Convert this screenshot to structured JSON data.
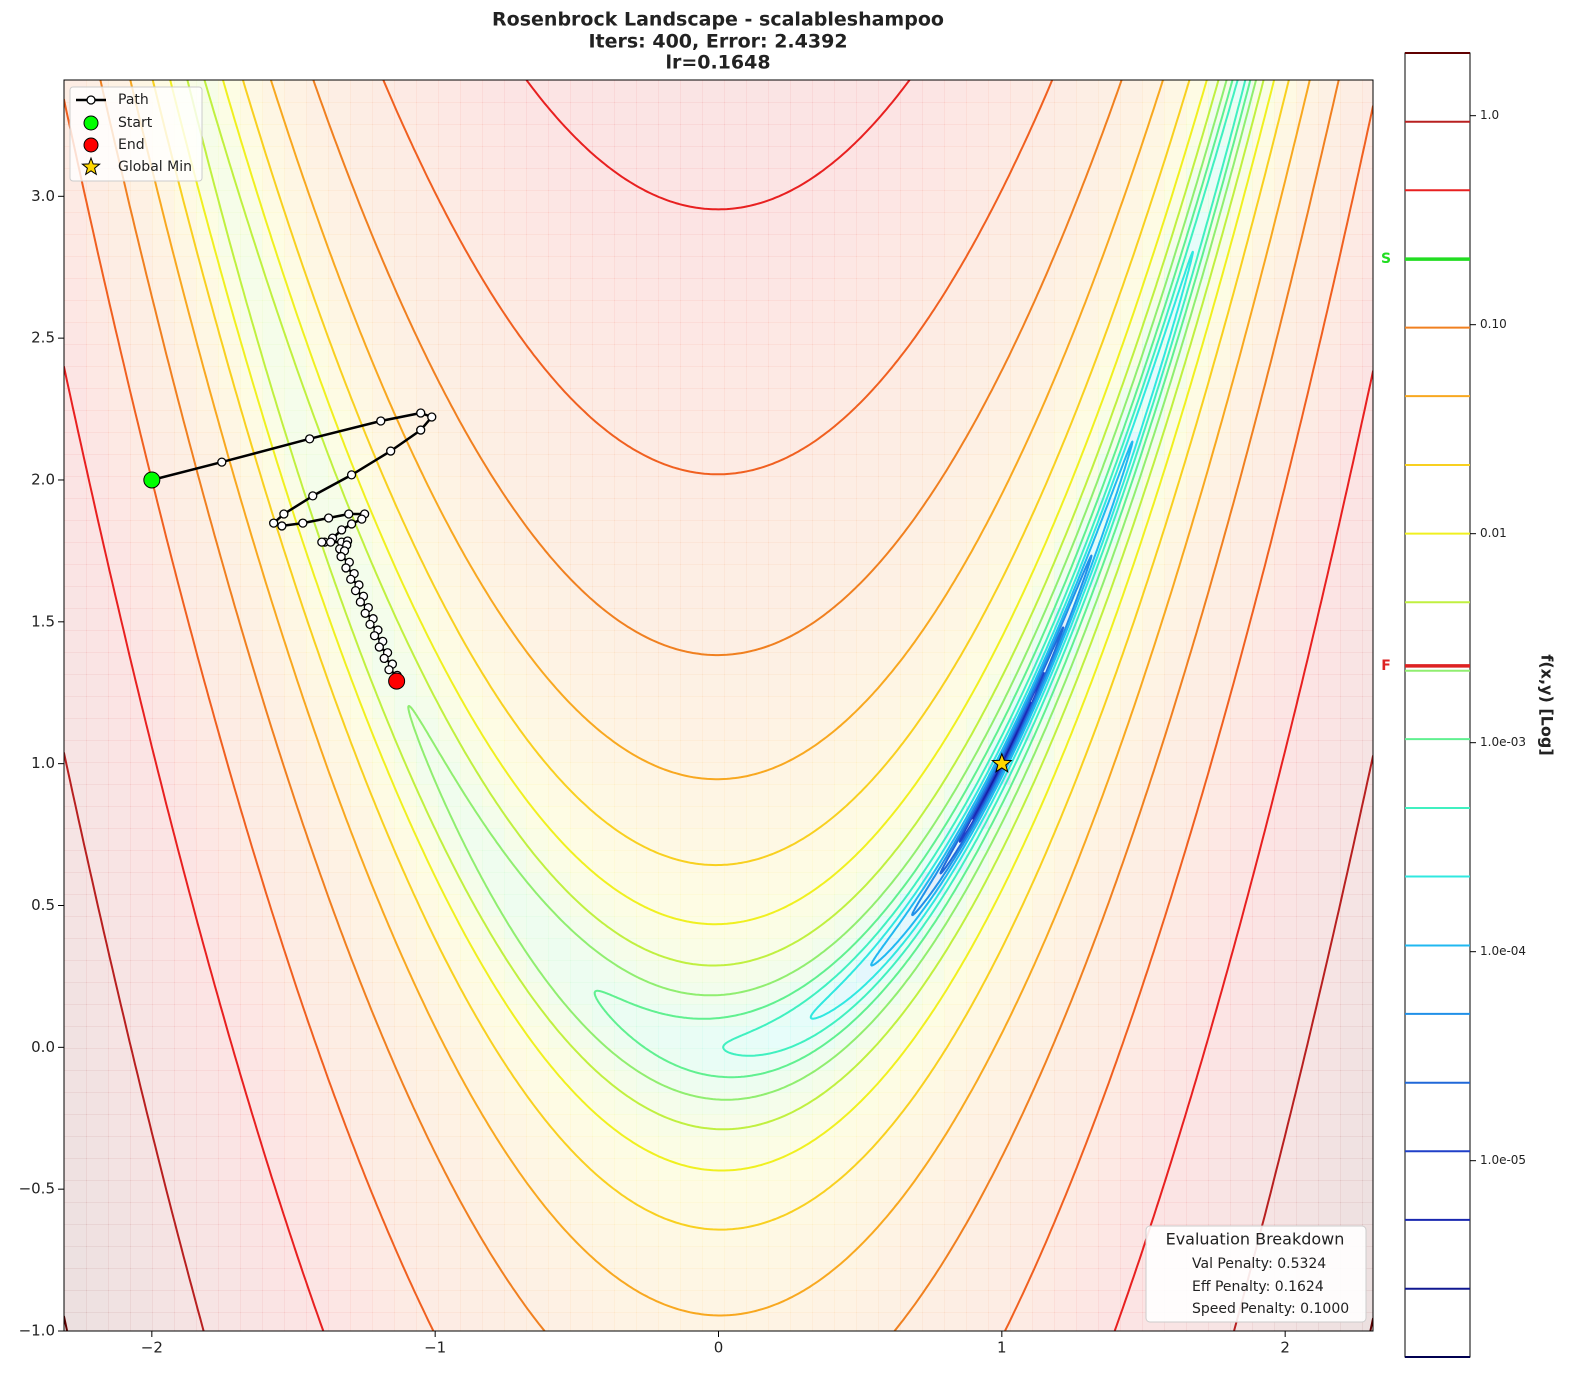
{
  "chart_data": {
    "type": "contour",
    "title": "Rosenbrock Landscape - scalableshampoo",
    "subtitle": [
      "Iters: 400, Error: 2.4392",
      "lr=0.1648"
    ],
    "xlim": [
      -2.31,
      2.31
    ],
    "ylim": [
      -1,
      3.41
    ],
    "xticks": [
      {
        "value": -2,
        "label": "−2"
      },
      {
        "value": -1,
        "label": "−1"
      },
      0,
      1,
      2
    ],
    "yticks": [
      {
        "value": -1,
        "label": "−1.0"
      },
      {
        "value": -0.5,
        "label": "−0.5"
      },
      {
        "value": 0,
        "label": "0.0"
      },
      0.5,
      {
        "value": 1,
        "label": "1.0"
      },
      1.5,
      {
        "value": 2,
        "label": "2.0"
      },
      2.5,
      {
        "value": 3,
        "label": "3.0"
      }
    ],
    "legend": "upper left",
    "series": [
      {
        "name": "Path",
        "color": "#000000",
        "x": [
          -2.0,
          -1.753,
          -1.443,
          -1.192,
          -1.051,
          -1.012,
          -1.051,
          -1.157,
          -1.295,
          -1.432,
          -1.534,
          -1.57,
          -1.541,
          -1.467,
          -1.376,
          -1.305,
          -1.249,
          -1.259,
          -1.295,
          -1.33,
          -1.362,
          -1.39,
          -1.4,
          -1.369,
          -1.33,
          -1.309,
          -1.312,
          -1.337,
          -1.32,
          -1.332,
          -1.303,
          -1.315,
          -1.286,
          -1.298,
          -1.269,
          -1.281,
          -1.253,
          -1.264,
          -1.236,
          -1.247,
          -1.219,
          -1.23,
          -1.202,
          -1.214,
          -1.185,
          -1.197,
          -1.168,
          -1.18,
          -1.151,
          -1.163,
          -1.134,
          -1.136
        ],
        "y": [
          2.0,
          2.063,
          2.145,
          2.208,
          2.236,
          2.222,
          2.176,
          2.102,
          2.018,
          1.944,
          1.88,
          1.848,
          1.838,
          1.848,
          1.866,
          1.88,
          1.88,
          1.862,
          1.845,
          1.824,
          1.795,
          1.781,
          1.781,
          1.781,
          1.781,
          1.785,
          1.771,
          1.757,
          1.75,
          1.73,
          1.71,
          1.69,
          1.67,
          1.65,
          1.63,
          1.61,
          1.59,
          1.57,
          1.55,
          1.53,
          1.511,
          1.491,
          1.471,
          1.451,
          1.431,
          1.411,
          1.391,
          1.371,
          1.351,
          1.331,
          1.311,
          1.291
        ]
      }
    ],
    "points": [
      {
        "name": "Start",
        "x": -2,
        "y": 2,
        "color": "#00ff00"
      },
      {
        "name": "End",
        "x": -1.136,
        "y": 1.291,
        "color": "#ff0000"
      },
      {
        "name": "Global Min",
        "x": 1,
        "y": 1,
        "color": "#ffd700"
      }
    ],
    "colorbar": {
      "label": "f(x,y) [Log]",
      "log": true,
      "lim": [
        1.15e-06,
        1.995
      ],
      "ticks": [
        {
          "value": 1,
          "label": "1.0"
        },
        {
          "value": 0.1,
          "label": "0.10"
        },
        0.01,
        {
          "value": 0.001,
          "label": "1.0e-03"
        },
        {
          "value": 0.0001,
          "label": "1.0e-04"
        },
        {
          "value": 1e-05,
          "label": "1.0e-05"
        }
      ],
      "levels": [
        1.15e-06,
        2.44e-06,
        5.21e-06,
        1.11e-05,
        2.36e-05,
        5.04e-05,
        0.000107,
        0.000229,
        0.000487,
        0.00104,
        0.00221,
        0.0047,
        0.01,
        0.0213,
        0.0455,
        0.0968,
        0.206,
        0.44,
        0.936,
        1.995
      ],
      "level_colors": [
        "#000050",
        "#101890",
        "#1a28b0",
        "#2040c8",
        "#2068d8",
        "#2090e8",
        "#20b8f0",
        "#30e8e0",
        "#40f0c0",
        "#60f090",
        "#90ee70",
        "#c0f040",
        "#f0f020",
        "#f8d020",
        "#f8a820",
        "#f08020",
        "#f06020",
        "#e82020",
        "#b82020",
        "#600000"
      ],
      "markers": [
        {
          "label": "S",
          "value": 0.206,
          "color": "#22dd22"
        },
        {
          "label": "F",
          "value": 0.00233,
          "color": "#dd2222"
        }
      ]
    },
    "annotation": {
      "title": "Evaluation Breakdown",
      "lines": [
        "Val Penalty: 0.5324",
        "Eff Penalty: 0.1624",
        "Speed Penalty: 0.1000"
      ]
    }
  }
}
